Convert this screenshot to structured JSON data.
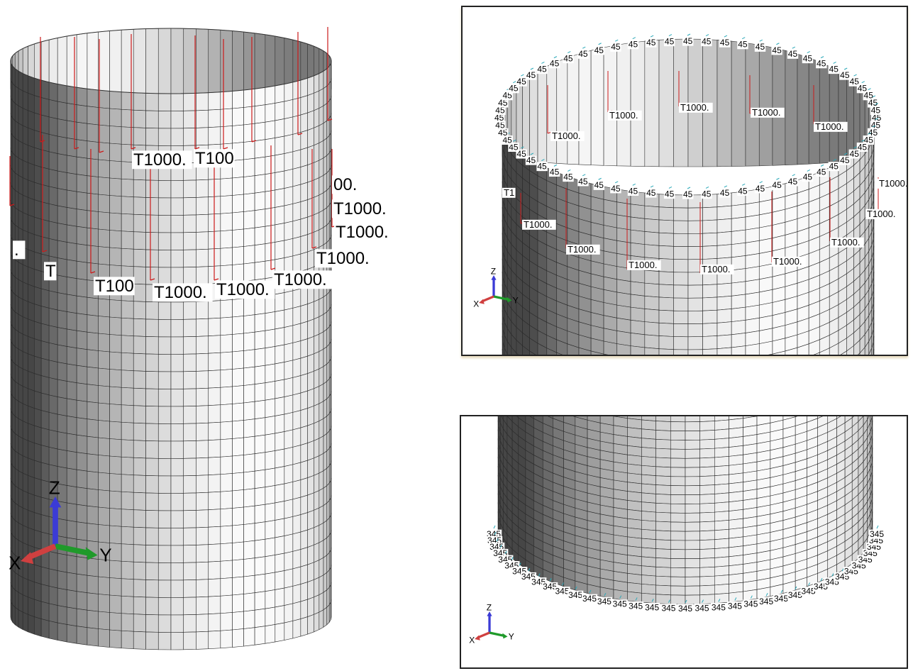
{
  "load_label": "T1000.",
  "top_ring_label": "45",
  "bottom_ring_label": "345",
  "axes": {
    "z": "Z",
    "y": "Y",
    "x": "X"
  },
  "colors": {
    "load_arrow": "#cc1a1a",
    "axis_z": "#3b3bd6",
    "axis_y": "#1f9a2a",
    "axis_x": "#d04040",
    "mesh_line": "#2a2a2a",
    "ring_marker": "#2aa8b8"
  }
}
